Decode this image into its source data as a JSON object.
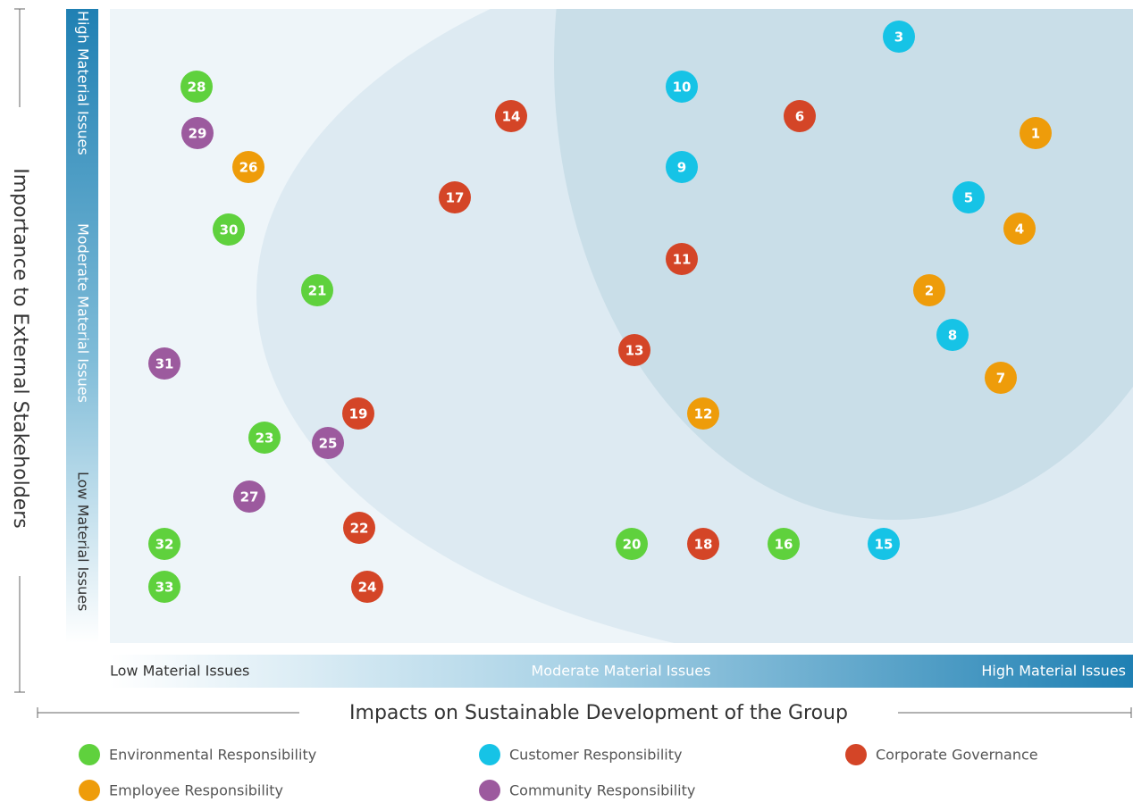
{
  "axes": {
    "y_title": "Importance to External Stakeholders",
    "x_title": "Impacts on Sustainable Development of the Group",
    "y_bands": [
      "High Material Issues",
      "Moderate Material Issues",
      "Low Material Issues"
    ],
    "x_bands": [
      "Low Material Issues",
      "Moderate Material Issues",
      "High Material Issues"
    ]
  },
  "legend": [
    {
      "name": "Environmental Responsibility",
      "color": "#5fd13d"
    },
    {
      "name": "Customer Responsibility",
      "color": "#16c3e6"
    },
    {
      "name": "Corporate Governance",
      "color": "#d44527"
    },
    {
      "name": "Employee Responsibility",
      "color": "#ee9c0a"
    },
    {
      "name": "Community Responsibility",
      "color": "#9c5a9e"
    }
  ],
  "nodes": [
    {
      "label": "1",
      "group": 3
    },
    {
      "label": "2",
      "group": 3
    },
    {
      "label": "3",
      "group": 1
    },
    {
      "label": "4",
      "group": 3
    },
    {
      "label": "5",
      "group": 1
    },
    {
      "label": "6",
      "group": 2
    },
    {
      "label": "7",
      "group": 3
    },
    {
      "label": "8",
      "group": 1
    },
    {
      "label": "9",
      "group": 1
    },
    {
      "label": "10",
      "group": 1
    },
    {
      "label": "11",
      "group": 2
    },
    {
      "label": "12",
      "group": 3
    },
    {
      "label": "13",
      "group": 2
    },
    {
      "label": "14",
      "group": 2
    },
    {
      "label": "15",
      "group": 1
    },
    {
      "label": "16",
      "group": 0
    },
    {
      "label": "17",
      "group": 2
    },
    {
      "label": "18",
      "group": 2
    },
    {
      "label": "19",
      "group": 2
    },
    {
      "label": "20",
      "group": 0
    },
    {
      "label": "21",
      "group": 0
    },
    {
      "label": "22",
      "group": 2
    },
    {
      "label": "23",
      "group": 0
    },
    {
      "label": "24",
      "group": 2
    },
    {
      "label": "25",
      "group": 4
    },
    {
      "label": "26",
      "group": 3
    },
    {
      "label": "27",
      "group": 4
    },
    {
      "label": "28",
      "group": 0
    },
    {
      "label": "29",
      "group": 4
    },
    {
      "label": "30",
      "group": 0
    },
    {
      "label": "31",
      "group": 4
    },
    {
      "label": "32",
      "group": 0
    },
    {
      "label": "33",
      "group": 0
    }
  ]
}
